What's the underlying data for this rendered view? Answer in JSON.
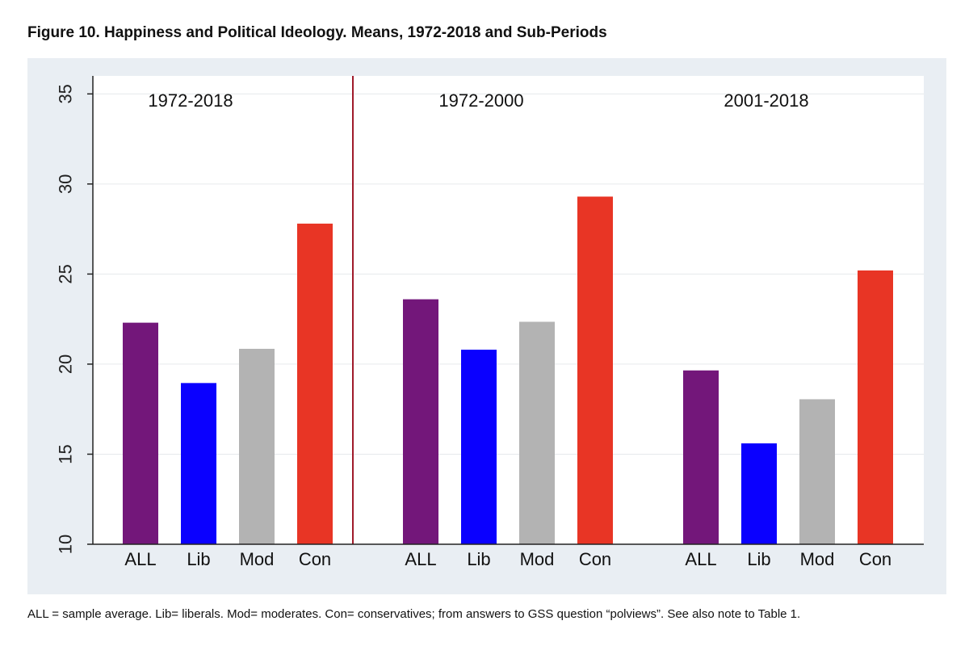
{
  "figure": {
    "title": "Figure 10. Happiness and Political Ideology.  Means, 1972-2018 and Sub-Periods",
    "note": "ALL = sample average.  Lib= liberals. Mod= moderates. Con= conservatives; from answers to GSS question “polviews”. See also note to Table 1."
  },
  "chart_data": {
    "type": "bar",
    "title": "Figure 10. Happiness and Political Ideology.  Means, 1972-2018 and Sub-Periods",
    "xlabel": "",
    "ylabel": "",
    "ylim": [
      10,
      36
    ],
    "yticks": [
      10,
      15,
      20,
      25,
      30,
      35
    ],
    "grid": true,
    "categories": [
      "ALL",
      "Lib",
      "Mod",
      "Con"
    ],
    "colors": {
      "ALL": "#73177a",
      "Lib": "#0a00ff",
      "Mod": "#b3b3b3",
      "Con": "#e83525"
    },
    "separator_color": "#a01a2a",
    "groups": [
      {
        "name": "1972-2018",
        "values": [
          22.3,
          18.95,
          20.85,
          27.8
        ]
      },
      {
        "name": "1972-2000",
        "values": [
          23.6,
          20.8,
          22.35,
          29.3
        ]
      },
      {
        "name": "2001-2018",
        "values": [
          19.65,
          15.6,
          18.05,
          25.2
        ]
      }
    ]
  }
}
